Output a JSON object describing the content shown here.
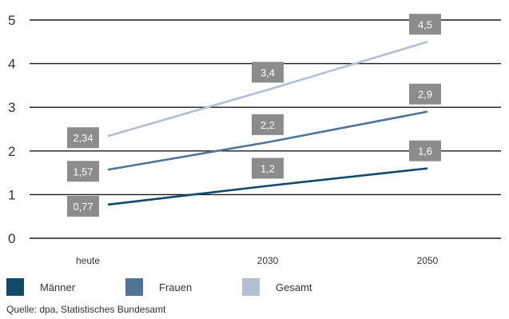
{
  "chart_data": {
    "type": "line",
    "categories": [
      "heute",
      "2030",
      "2050"
    ],
    "ylim": [
      0,
      5
    ],
    "yticks": [
      "0",
      "1",
      "2",
      "3",
      "4",
      "5"
    ],
    "grid": true,
    "legend_position": "bottom",
    "series": [
      {
        "name": "Männer",
        "color": "#0f4a6b",
        "values": [
          0.77,
          1.2,
          1.6
        ],
        "labels": [
          "0,77",
          "1,2",
          "1,6"
        ]
      },
      {
        "name": "Frauen",
        "color": "#4f7596",
        "values": [
          1.57,
          2.2,
          2.9
        ],
        "labels": [
          "1,57",
          "2,2",
          "2,9"
        ]
      },
      {
        "name": "Gesamt",
        "color": "#b3bfd2",
        "values": [
          2.34,
          3.4,
          4.5
        ],
        "labels": [
          "2,34",
          "3,4",
          "4,5"
        ]
      }
    ],
    "label_box_color": "#8c8c8c",
    "source": "Quelle: dpa, Statistisches Bundesamt"
  }
}
